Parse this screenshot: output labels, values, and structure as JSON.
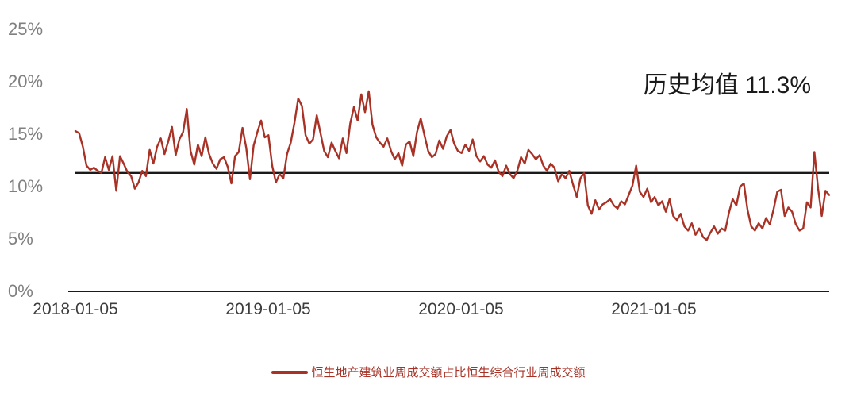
{
  "chart_data": {
    "type": "line",
    "title": "",
    "ylim": [
      0,
      25
    ],
    "y_tick_labels": [
      "25%",
      "20%",
      "15%",
      "10%",
      "5%",
      "0%"
    ],
    "x_tick_labels": [
      "2018-01-05",
      "2019-01-05",
      "2020-01-05",
      "2021-01-05"
    ],
    "grid": false,
    "legend_position": "bottom-center",
    "mean_line": {
      "value": 11.3,
      "label": "历史均值 11.3%"
    },
    "series": [
      {
        "name": "恒生地产建筑业周成交额占比恒生综合行业周成交额",
        "color": "#A93226",
        "values": [
          15.3,
          15.1,
          13.8,
          12.0,
          11.6,
          11.8,
          11.5,
          11.3,
          12.8,
          11.6,
          12.9,
          9.6,
          12.9,
          12.2,
          11.4,
          11.0,
          9.8,
          10.4,
          11.5,
          11.0,
          13.5,
          12.2,
          13.8,
          14.6,
          13.1,
          14.3,
          15.7,
          13.0,
          14.5,
          15.2,
          17.4,
          13.4,
          12.1,
          14.0,
          12.9,
          14.7,
          13.1,
          12.2,
          11.7,
          12.6,
          12.8,
          11.9,
          10.3,
          12.9,
          13.3,
          15.6,
          13.7,
          10.7,
          13.9,
          15.2,
          16.3,
          14.7,
          14.9,
          12.0,
          10.4,
          11.2,
          10.8,
          13.1,
          14.2,
          16.1,
          18.4,
          17.7,
          14.9,
          14.1,
          14.5,
          16.8,
          15.1,
          13.4,
          12.8,
          14.2,
          13.4,
          12.7,
          14.6,
          13.2,
          16.0,
          17.6,
          16.3,
          18.8,
          17.1,
          19.1,
          15.9,
          14.7,
          14.2,
          13.8,
          14.6,
          13.4,
          12.6,
          13.2,
          12.0,
          14.0,
          14.3,
          12.9,
          15.2,
          16.5,
          14.9,
          13.4,
          12.8,
          13.1,
          14.4,
          13.6,
          14.8,
          15.4,
          14.1,
          13.4,
          13.2,
          14.0,
          13.4,
          14.5,
          12.9,
          12.4,
          12.9,
          12.1,
          11.8,
          12.5,
          11.4,
          11.0,
          12.0,
          11.2,
          10.8,
          11.5,
          12.8,
          12.2,
          13.5,
          13.1,
          12.6,
          13.0,
          12.0,
          11.5,
          12.2,
          11.8,
          10.5,
          11.2,
          10.8,
          11.5,
          10.2,
          9.0,
          10.8,
          11.3,
          8.2,
          7.4,
          8.7,
          7.8,
          8.3,
          8.5,
          8.8,
          8.2,
          7.9,
          8.6,
          8.3,
          9.2,
          10.1,
          12.0,
          9.5,
          9.0,
          9.8,
          8.5,
          9.0,
          8.2,
          8.6,
          7.6,
          8.8,
          7.2,
          6.8,
          7.4,
          6.2,
          5.8,
          6.5,
          5.4,
          6.0,
          5.2,
          4.9,
          5.6,
          6.2,
          5.5,
          6.0,
          5.8,
          7.5,
          8.8,
          8.2,
          10.0,
          10.3,
          7.8,
          6.2,
          5.8,
          6.5,
          6.0,
          7.0,
          6.4,
          7.8,
          9.5,
          9.7,
          7.2,
          8.0,
          7.6,
          6.4,
          5.8,
          6.0,
          8.5,
          8.0,
          13.3,
          9.8,
          7.2,
          9.6,
          9.2
        ]
      }
    ]
  },
  "annotation": {
    "text": "历史均值 11.3%"
  },
  "legend": {
    "label": "恒生地产建筑业周成交额占比恒生综合行业周成交额"
  },
  "colors": {
    "series": "#A93226",
    "mean_line": "#1a1a1a",
    "axis": "#1a1a1a",
    "y_tick_text": "#808080",
    "x_tick_text": "#3d3d3d"
  }
}
